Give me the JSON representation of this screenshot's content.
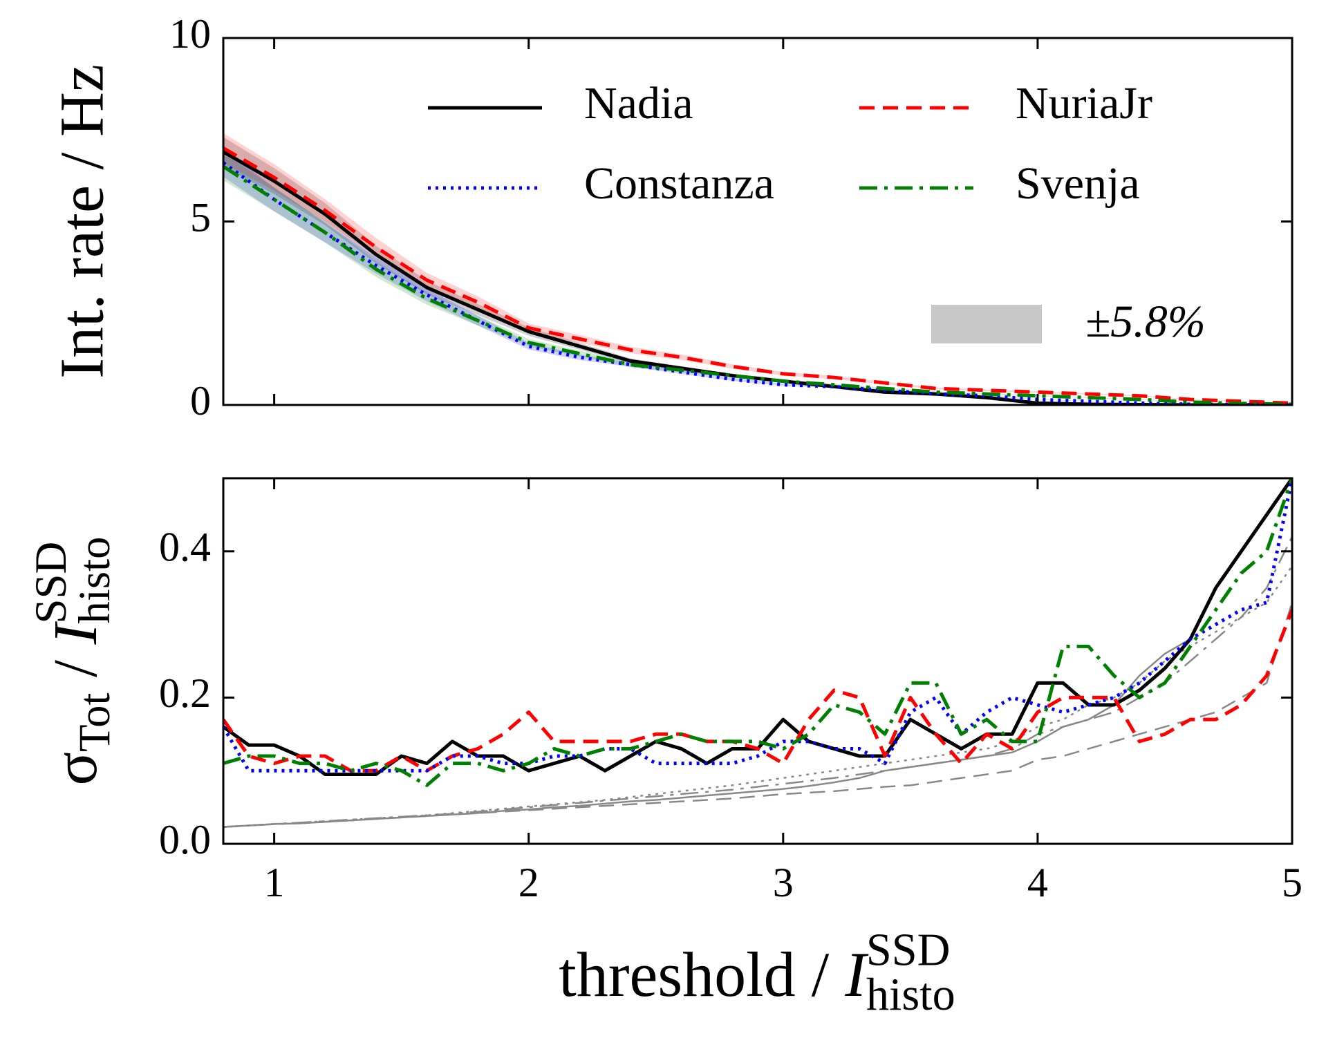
{
  "chart_data": [
    {
      "type": "line",
      "ylabel": "Int. rate / Hz",
      "x": [
        0.8,
        1.0,
        1.2,
        1.4,
        1.6,
        1.8,
        2.0,
        2.2,
        2.4,
        2.6,
        2.8,
        3.0,
        3.2,
        3.4,
        3.6,
        3.8,
        4.0,
        4.2,
        4.4,
        4.6,
        4.8,
        5.0
      ],
      "xlim": [
        0.8,
        5
      ],
      "ylim": [
        0,
        10
      ],
      "yticks": [
        0,
        5,
        10
      ],
      "band": {
        "value": 5.8,
        "label": "±5.8%",
        "color": "#c8c8c8"
      },
      "series": [
        {
          "name": "Nadia",
          "color": "#000000",
          "style": "solid",
          "values": [
            6.9,
            6.1,
            5.2,
            4.1,
            3.2,
            2.6,
            2.0,
            1.6,
            1.2,
            1.0,
            0.8,
            0.65,
            0.5,
            0.35,
            0.3,
            0.2,
            0.05,
            0.02,
            0.01,
            0,
            0,
            0
          ]
        },
        {
          "name": "NuriaJr",
          "color": "#ff0000",
          "style": "dashed",
          "values": [
            7.0,
            6.2,
            5.3,
            4.3,
            3.4,
            2.8,
            2.1,
            1.8,
            1.5,
            1.3,
            1.05,
            0.85,
            0.75,
            0.6,
            0.45,
            0.4,
            0.35,
            0.3,
            0.25,
            0.15,
            0.1,
            0.05
          ]
        },
        {
          "name": "Constanza",
          "color": "#0000ff",
          "style": "dotted",
          "values": [
            6.6,
            5.6,
            4.7,
            3.8,
            3.0,
            2.3,
            1.6,
            1.3,
            1.1,
            0.9,
            0.7,
            0.55,
            0.5,
            0.4,
            0.3,
            0.25,
            0.15,
            0.1,
            0.05,
            0.02,
            0.01,
            0
          ]
        },
        {
          "name": "Svenja",
          "color": "#008000",
          "style": "dashdot",
          "values": [
            6.5,
            5.6,
            4.7,
            3.7,
            2.9,
            2.3,
            1.7,
            1.4,
            1.1,
            0.95,
            0.8,
            0.65,
            0.55,
            0.45,
            0.35,
            0.3,
            0.25,
            0.2,
            0.15,
            0.08,
            0.04,
            0.02
          ]
        }
      ]
    },
    {
      "type": "line",
      "ylabel": [
        "σ",
        "Tot",
        " / ",
        "I",
        "SSD",
        "histo"
      ],
      "xlabel": [
        "threshold / ",
        "I",
        "SSD",
        "histo"
      ],
      "x": [
        0.8,
        0.9,
        1.0,
        1.1,
        1.2,
        1.3,
        1.4,
        1.5,
        1.6,
        1.7,
        1.8,
        1.9,
        2.0,
        2.1,
        2.2,
        2.3,
        2.4,
        2.5,
        2.6,
        2.7,
        2.8,
        2.9,
        3.0,
        3.1,
        3.2,
        3.3,
        3.4,
        3.5,
        3.6,
        3.7,
        3.8,
        3.9,
        4.0,
        4.1,
        4.2,
        4.3,
        4.4,
        4.5,
        4.6,
        4.7,
        4.8,
        4.9,
        5.0
      ],
      "xlim": [
        0.8,
        5
      ],
      "ylim": [
        0,
        0.5
      ],
      "xticks": [
        1,
        2,
        3,
        4,
        5
      ],
      "yticks": [
        {
          "value": 0,
          "label": "0.0"
        },
        0.2,
        0.4
      ],
      "series": [
        {
          "name": "Nadia",
          "color": "#000000",
          "style": "solid",
          "values": [
            0.16,
            0.135,
            0.135,
            0.12,
            0.095,
            0.095,
            0.095,
            0.12,
            0.11,
            0.14,
            0.12,
            0.12,
            0.1,
            0.11,
            0.12,
            0.1,
            0.12,
            0.14,
            0.13,
            0.11,
            0.13,
            0.13,
            0.17,
            0.14,
            0.13,
            0.12,
            0.12,
            0.17,
            0.15,
            0.13,
            0.15,
            0.15,
            0.22,
            0.22,
            0.19,
            0.19,
            0.21,
            0.24,
            0.28,
            0.35,
            0.4,
            0.45,
            0.5
          ]
        },
        {
          "name": "NuriaJr",
          "color": "#ff0000",
          "style": "dashed",
          "values": [
            0.17,
            0.12,
            0.11,
            0.12,
            0.12,
            0.1,
            0.1,
            0.12,
            0.1,
            0.12,
            0.13,
            0.15,
            0.18,
            0.14,
            0.14,
            0.14,
            0.14,
            0.15,
            0.15,
            0.14,
            0.14,
            0.13,
            0.11,
            0.17,
            0.21,
            0.2,
            0.12,
            0.2,
            0.15,
            0.11,
            0.15,
            0.13,
            0.18,
            0.2,
            0.2,
            0.2,
            0.14,
            0.15,
            0.17,
            0.17,
            0.19,
            0.23,
            0.32
          ]
        },
        {
          "name": "Constanza",
          "color": "#0000ff",
          "style": "dotted",
          "values": [
            0.16,
            0.1,
            0.1,
            0.1,
            0.1,
            0.1,
            0.1,
            0.1,
            0.1,
            0.12,
            0.12,
            0.11,
            0.11,
            0.12,
            0.12,
            0.13,
            0.13,
            0.11,
            0.11,
            0.11,
            0.11,
            0.12,
            0.14,
            0.14,
            0.13,
            0.13,
            0.11,
            0.18,
            0.2,
            0.15,
            0.18,
            0.2,
            0.19,
            0.18,
            0.19,
            0.2,
            0.22,
            0.25,
            0.28,
            0.3,
            0.32,
            0.33,
            0.5
          ]
        },
        {
          "name": "Svenja",
          "color": "#008000",
          "style": "dashdot",
          "values": [
            0.11,
            0.12,
            0.12,
            0.11,
            0.11,
            0.1,
            0.11,
            0.1,
            0.08,
            0.11,
            0.11,
            0.1,
            0.11,
            0.13,
            0.12,
            0.13,
            0.13,
            0.14,
            0.15,
            0.14,
            0.14,
            0.14,
            0.13,
            0.15,
            0.19,
            0.18,
            0.15,
            0.22,
            0.22,
            0.15,
            0.17,
            0.14,
            0.14,
            0.27,
            0.27,
            0.23,
            0.2,
            0.22,
            0.27,
            0.32,
            0.37,
            0.4,
            0.5
          ]
        },
        {
          "color": "#888888",
          "style": "solid",
          "thin": true,
          "values": [
            0.023,
            0.025,
            0.027,
            0.028,
            0.03,
            0.032,
            0.034,
            0.036,
            0.038,
            0.04,
            0.042,
            0.045,
            0.047,
            0.05,
            0.052,
            0.055,
            0.058,
            0.06,
            0.063,
            0.066,
            0.069,
            0.072,
            0.075,
            0.079,
            0.084,
            0.09,
            0.1,
            0.105,
            0.11,
            0.115,
            0.12,
            0.125,
            0.14,
            0.16,
            0.17,
            0.19,
            0.23,
            0.26,
            0.28,
            0.35,
            0.4,
            0.45,
            0.5
          ]
        },
        {
          "color": "#888888",
          "style": "dashed",
          "thin": true,
          "values": [
            0.023,
            0.025,
            0.027,
            0.028,
            0.03,
            0.032,
            0.034,
            0.036,
            0.038,
            0.04,
            0.042,
            0.044,
            0.046,
            0.048,
            0.05,
            0.052,
            0.054,
            0.056,
            0.058,
            0.06,
            0.062,
            0.065,
            0.068,
            0.07,
            0.072,
            0.075,
            0.078,
            0.08,
            0.085,
            0.09,
            0.095,
            0.1,
            0.115,
            0.12,
            0.13,
            0.14,
            0.15,
            0.16,
            0.17,
            0.18,
            0.2,
            0.22,
            0.33
          ]
        },
        {
          "color": "#888888",
          "style": "dotted",
          "thin": true,
          "values": [
            0.023,
            0.025,
            0.027,
            0.029,
            0.031,
            0.033,
            0.035,
            0.037,
            0.039,
            0.042,
            0.045,
            0.048,
            0.051,
            0.054,
            0.057,
            0.06,
            0.064,
            0.068,
            0.072,
            0.076,
            0.08,
            0.085,
            0.09,
            0.095,
            0.1,
            0.105,
            0.11,
            0.115,
            0.12,
            0.125,
            0.13,
            0.14,
            0.16,
            0.17,
            0.19,
            0.2,
            0.22,
            0.25,
            0.27,
            0.29,
            0.31,
            0.33,
            0.38
          ]
        },
        {
          "color": "#888888",
          "style": "dashdot",
          "thin": true,
          "values": [
            0.023,
            0.025,
            0.027,
            0.029,
            0.031,
            0.033,
            0.035,
            0.037,
            0.039,
            0.041,
            0.044,
            0.047,
            0.05,
            0.053,
            0.056,
            0.059,
            0.062,
            0.065,
            0.068,
            0.071,
            0.074,
            0.078,
            0.082,
            0.086,
            0.09,
            0.095,
            0.1,
            0.105,
            0.11,
            0.115,
            0.12,
            0.13,
            0.15,
            0.16,
            0.17,
            0.18,
            0.2,
            0.22,
            0.25,
            0.28,
            0.31,
            0.35,
            0.42
          ]
        }
      ]
    }
  ]
}
